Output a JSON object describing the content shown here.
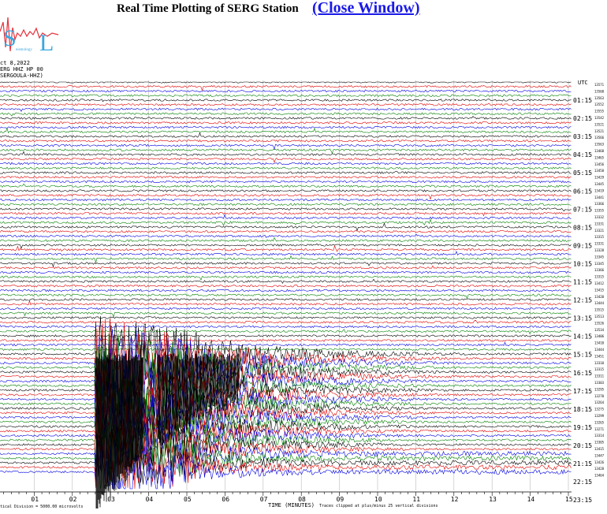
{
  "title": "Real Time Plotting of SERG Station",
  "close_link": "(Close Window)",
  "logo_text": "Seismology Lab",
  "header": {
    "date": "ct 8,2022",
    "station": "ERG HHZ HP 00",
    "channel": "SERGOULA-HHZ)"
  },
  "utc_label": "UTC",
  "hour_labels": [
    "01:15",
    "02:15",
    "03:15",
    "04:15",
    "05:15",
    "06:15",
    "07:15",
    "08:15",
    "09:15",
    "10:15",
    "11:15",
    "12:15",
    "13:15",
    "14:15",
    "15:15",
    "16:15",
    "17:15",
    "18:15",
    "19:15",
    "20:15",
    "21:15",
    "22:15",
    "23:15"
  ],
  "right_counts": [
    "13571",
    "13560",
    "13563",
    "13552",
    "13555",
    "13542",
    "13521",
    "13521",
    "13566",
    "13563",
    "13468",
    "13465",
    "13456",
    "13458",
    "13429",
    "13445",
    "13419",
    "13441",
    "13366",
    "13355",
    "13332",
    "13331",
    "13321",
    "13315",
    "13331",
    "13328",
    "13345",
    "13345",
    "13366",
    "13315",
    "13412",
    "13415",
    "13420",
    "13444",
    "13515",
    "13513",
    "13526",
    "13534",
    "13406",
    "13410",
    "13444",
    "13451",
    "13310",
    "13315",
    "13311",
    "13303",
    "13295",
    "13270",
    "13264",
    "13275",
    "13299",
    "13265",
    "13271",
    "13314",
    "13305",
    "13415",
    "13447",
    "13426",
    "13428",
    "13464"
  ],
  "x_ticks": [
    "01",
    "02",
    "03",
    "04",
    "05",
    "06",
    "07",
    "08",
    "09",
    "10",
    "11",
    "12",
    "13",
    "14",
    "15"
  ],
  "x_axis_title": "TIME (MINUTES)",
  "scale_note": "tical Division = 5000.00 microvolts",
  "clip_note": "Traces clipped at plus/minus 25 vertical divisions",
  "trace_colors": [
    "#000000",
    "#e00000",
    "#0000e0",
    "#008000"
  ]
}
